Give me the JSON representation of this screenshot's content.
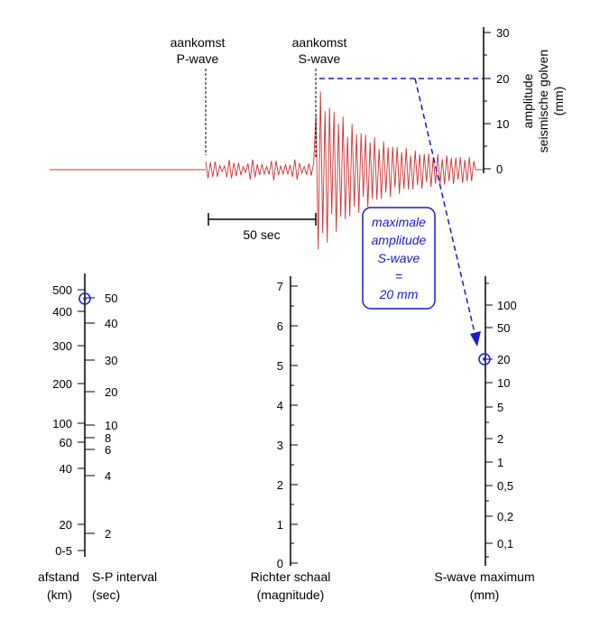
{
  "seismogram": {
    "p_label_1": "aankomst",
    "p_label_2": "P-wave",
    "s_label_1": "aankomst",
    "s_label_2": "S-wave",
    "duration_label": "50 sec",
    "trace_color": "#cc3333",
    "amplitude_axis": {
      "label_1": "amplitude",
      "label_2": "seismische golven",
      "label_3": "(mm)",
      "ticks": [
        "0",
        "10",
        "20",
        "30"
      ]
    }
  },
  "callout": {
    "line_1": "maximale",
    "line_2": "amplitude",
    "line_3": "S-wave",
    "line_4": "=",
    "line_5": "20 mm",
    "color": "#1a1acc"
  },
  "nomogram": {
    "distance_axis": {
      "label_1": "afstand",
      "label_2": "(km)",
      "ticks": [
        "500",
        "400",
        "300",
        "200",
        "100",
        "60",
        "40",
        "20",
        "0-5"
      ]
    },
    "sp_axis": {
      "label_1": "S-P interval",
      "label_2": "(sec)",
      "ticks": [
        "50",
        "40",
        "30",
        "20",
        "10",
        "8",
        "6",
        "4",
        "2"
      ]
    },
    "richter_axis": {
      "label_1": "Richter schaal",
      "label_2": "(magnitude)",
      "ticks": [
        "0",
        "1",
        "2",
        "3",
        "4",
        "5",
        "6",
        "7"
      ]
    },
    "swave_axis": {
      "label_1": "S-wave maximum",
      "label_2": "(mm)",
      "ticks": [
        "100",
        "50",
        "20",
        "10",
        "5",
        "2",
        "1",
        "0,5",
        "0,2",
        "0,1"
      ]
    },
    "marker_color": "#1a1acc"
  }
}
